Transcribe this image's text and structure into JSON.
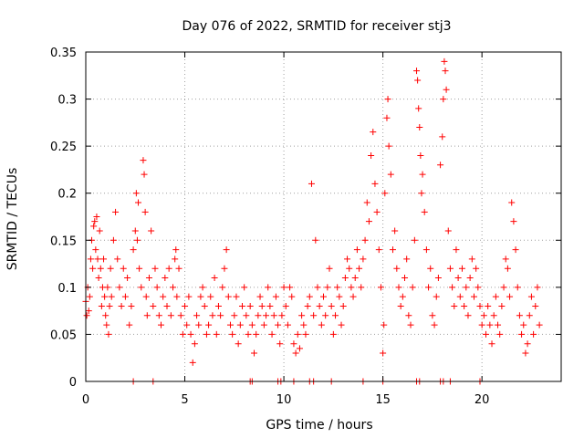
{
  "chart_data": {
    "type": "scatter",
    "title": "Day 076 of 2022, SRMTID for receiver stj3",
    "xlabel": "GPS time / hours",
    "ylabel": "SRMTID / TECUs",
    "xlim": [
      0,
      24
    ],
    "ylim": [
      0,
      0.35
    ],
    "grid": true,
    "x_ticks": [
      0,
      5,
      10,
      15,
      20
    ],
    "x_tick_labels": [
      "0",
      "5",
      "10",
      "15",
      "20"
    ],
    "y_ticks": [
      0,
      0.05,
      0.1,
      0.15,
      0.2,
      0.25,
      0.3,
      0.35
    ],
    "y_tick_labels": [
      "0",
      "0.05",
      "0.1",
      "0.15",
      "0.2",
      "0.25",
      "0.3",
      "0.35"
    ],
    "marker": "+",
    "colors": {
      "marker": "#ff0000",
      "grid": "#a0a0a0",
      "axis": "#000000"
    },
    "series": [
      {
        "name": "SRMTID",
        "points": [
          [
            0.0,
            0.085
          ],
          [
            0.05,
            0.07
          ],
          [
            0.1,
            0.1
          ],
          [
            0.15,
            0.075
          ],
          [
            0.2,
            0.09
          ],
          [
            0.25,
            0.13
          ],
          [
            0.3,
            0.15
          ],
          [
            0.35,
            0.12
          ],
          [
            0.4,
            0.165
          ],
          [
            0.45,
            0.17
          ],
          [
            0.5,
            0.14
          ],
          [
            0.55,
            0.175
          ],
          [
            0.6,
            0.13
          ],
          [
            0.65,
            0.11
          ],
          [
            0.7,
            0.16
          ],
          [
            0.75,
            0.12
          ],
          [
            0.8,
            0.08
          ],
          [
            0.85,
            0.1
          ],
          [
            0.9,
            0.13
          ],
          [
            0.95,
            0.09
          ],
          [
            1.0,
            0.07
          ],
          [
            1.05,
            0.06
          ],
          [
            1.1,
            0.1
          ],
          [
            1.15,
            0.05
          ],
          [
            1.2,
            0.08
          ],
          [
            1.25,
            0.12
          ],
          [
            1.3,
            0.09
          ],
          [
            1.4,
            0.15
          ],
          [
            1.5,
            0.18
          ],
          [
            1.6,
            0.13
          ],
          [
            1.7,
            0.1
          ],
          [
            1.8,
            0.08
          ],
          [
            1.9,
            0.12
          ],
          [
            2.0,
            0.09
          ],
          [
            2.1,
            0.11
          ],
          [
            2.2,
            0.06
          ],
          [
            2.3,
            0.08
          ],
          [
            2.4,
            0.14
          ],
          [
            2.5,
            0.16
          ],
          [
            2.55,
            0.2
          ],
          [
            2.6,
            0.15
          ],
          [
            2.65,
            0.19
          ],
          [
            2.7,
            0.12
          ],
          [
            2.8,
            0.1
          ],
          [
            2.9,
            0.235
          ],
          [
            2.95,
            0.22
          ],
          [
            3.0,
            0.18
          ],
          [
            3.05,
            0.09
          ],
          [
            3.1,
            0.07
          ],
          [
            3.2,
            0.11
          ],
          [
            3.3,
            0.16
          ],
          [
            3.4,
            0.08
          ],
          [
            3.5,
            0.12
          ],
          [
            3.6,
            0.1
          ],
          [
            3.7,
            0.07
          ],
          [
            3.8,
            0.06
          ],
          [
            3.9,
            0.09
          ],
          [
            4.0,
            0.11
          ],
          [
            4.1,
            0.08
          ],
          [
            4.2,
            0.12
          ],
          [
            4.3,
            0.07
          ],
          [
            4.4,
            0.1
          ],
          [
            4.5,
            0.13
          ],
          [
            4.55,
            0.14
          ],
          [
            4.6,
            0.09
          ],
          [
            4.7,
            0.12
          ],
          [
            4.8,
            0.07
          ],
          [
            4.9,
            0.05
          ],
          [
            5.0,
            0.08
          ],
          [
            5.1,
            0.06
          ],
          [
            5.2,
            0.09
          ],
          [
            5.3,
            0.05
          ],
          [
            5.4,
            0.02
          ],
          [
            5.5,
            0.04
          ],
          [
            5.6,
            0.07
          ],
          [
            5.7,
            0.06
          ],
          [
            5.8,
            0.09
          ],
          [
            5.9,
            0.1
          ],
          [
            6.0,
            0.08
          ],
          [
            6.1,
            0.05
          ],
          [
            6.2,
            0.06
          ],
          [
            6.3,
            0.09
          ],
          [
            6.4,
            0.07
          ],
          [
            6.5,
            0.11
          ],
          [
            6.6,
            0.05
          ],
          [
            6.7,
            0.08
          ],
          [
            6.8,
            0.07
          ],
          [
            6.9,
            0.1
          ],
          [
            7.0,
            0.12
          ],
          [
            7.1,
            0.14
          ],
          [
            7.2,
            0.09
          ],
          [
            7.3,
            0.06
          ],
          [
            7.4,
            0.05
          ],
          [
            7.5,
            0.07
          ],
          [
            7.6,
            0.09
          ],
          [
            7.7,
            0.04
          ],
          [
            7.8,
            0.06
          ],
          [
            7.9,
            0.08
          ],
          [
            8.0,
            0.1
          ],
          [
            8.1,
            0.07
          ],
          [
            8.2,
            0.05
          ],
          [
            8.3,
            0.08
          ],
          [
            8.4,
            0.06
          ],
          [
            8.5,
            0.03
          ],
          [
            8.6,
            0.05
          ],
          [
            8.7,
            0.07
          ],
          [
            8.8,
            0.09
          ],
          [
            8.9,
            0.08
          ],
          [
            9.0,
            0.06
          ],
          [
            9.1,
            0.07
          ],
          [
            9.2,
            0.1
          ],
          [
            9.3,
            0.08
          ],
          [
            9.4,
            0.05
          ],
          [
            9.5,
            0.07
          ],
          [
            9.6,
            0.09
          ],
          [
            9.7,
            0.06
          ],
          [
            9.8,
            0.04
          ],
          [
            9.9,
            0.07
          ],
          [
            10.0,
            0.1
          ],
          [
            10.1,
            0.08
          ],
          [
            10.2,
            0.06
          ],
          [
            10.3,
            0.1
          ],
          [
            10.4,
            0.09
          ],
          [
            10.5,
            0.04
          ],
          [
            10.6,
            0.03
          ],
          [
            10.7,
            0.05
          ],
          [
            10.8,
            0.035
          ],
          [
            10.9,
            0.07
          ],
          [
            11.0,
            0.06
          ],
          [
            11.1,
            0.05
          ],
          [
            11.2,
            0.08
          ],
          [
            11.3,
            0.09
          ],
          [
            11.4,
            0.21
          ],
          [
            11.5,
            0.07
          ],
          [
            11.6,
            0.15
          ],
          [
            11.7,
            0.1
          ],
          [
            11.8,
            0.08
          ],
          [
            11.9,
            0.06
          ],
          [
            12.0,
            0.09
          ],
          [
            12.1,
            0.07
          ],
          [
            12.2,
            0.1
          ],
          [
            12.3,
            0.12
          ],
          [
            12.4,
            0.08
          ],
          [
            12.5,
            0.05
          ],
          [
            12.6,
            0.07
          ],
          [
            12.7,
            0.1
          ],
          [
            12.8,
            0.09
          ],
          [
            12.9,
            0.06
          ],
          [
            13.0,
            0.08
          ],
          [
            13.1,
            0.11
          ],
          [
            13.2,
            0.13
          ],
          [
            13.3,
            0.12
          ],
          [
            13.4,
            0.1
          ],
          [
            13.5,
            0.09
          ],
          [
            13.6,
            0.11
          ],
          [
            13.7,
            0.14
          ],
          [
            13.8,
            0.12
          ],
          [
            13.9,
            0.1
          ],
          [
            14.0,
            0.13
          ],
          [
            14.1,
            0.15
          ],
          [
            14.2,
            0.19
          ],
          [
            14.3,
            0.17
          ],
          [
            14.4,
            0.24
          ],
          [
            14.5,
            0.265
          ],
          [
            14.6,
            0.21
          ],
          [
            14.7,
            0.18
          ],
          [
            14.8,
            0.14
          ],
          [
            14.9,
            0.1
          ],
          [
            15.0,
            0.03
          ],
          [
            15.05,
            0.06
          ],
          [
            15.1,
            0.2
          ],
          [
            15.2,
            0.28
          ],
          [
            15.25,
            0.3
          ],
          [
            15.3,
            0.25
          ],
          [
            15.4,
            0.22
          ],
          [
            15.5,
            0.14
          ],
          [
            15.6,
            0.16
          ],
          [
            15.7,
            0.12
          ],
          [
            15.8,
            0.1
          ],
          [
            15.9,
            0.08
          ],
          [
            16.0,
            0.09
          ],
          [
            16.1,
            0.11
          ],
          [
            16.2,
            0.13
          ],
          [
            16.3,
            0.07
          ],
          [
            16.4,
            0.06
          ],
          [
            16.5,
            0.1
          ],
          [
            16.6,
            0.15
          ],
          [
            16.7,
            0.33
          ],
          [
            16.75,
            0.32
          ],
          [
            16.8,
            0.29
          ],
          [
            16.85,
            0.27
          ],
          [
            16.9,
            0.24
          ],
          [
            16.95,
            0.2
          ],
          [
            17.0,
            0.22
          ],
          [
            17.1,
            0.18
          ],
          [
            17.2,
            0.14
          ],
          [
            17.3,
            0.1
          ],
          [
            17.4,
            0.12
          ],
          [
            17.5,
            0.07
          ],
          [
            17.6,
            0.06
          ],
          [
            17.7,
            0.09
          ],
          [
            17.8,
            0.11
          ],
          [
            17.9,
            0.23
          ],
          [
            18.0,
            0.26
          ],
          [
            18.05,
            0.3
          ],
          [
            18.1,
            0.34
          ],
          [
            18.15,
            0.33
          ],
          [
            18.2,
            0.31
          ],
          [
            18.3,
            0.16
          ],
          [
            18.4,
            0.12
          ],
          [
            18.5,
            0.1
          ],
          [
            18.6,
            0.08
          ],
          [
            18.7,
            0.14
          ],
          [
            18.8,
            0.11
          ],
          [
            18.9,
            0.09
          ],
          [
            19.0,
            0.12
          ],
          [
            19.1,
            0.08
          ],
          [
            19.2,
            0.1
          ],
          [
            19.3,
            0.07
          ],
          [
            19.4,
            0.11
          ],
          [
            19.5,
            0.13
          ],
          [
            19.6,
            0.09
          ],
          [
            19.7,
            0.12
          ],
          [
            19.8,
            0.1
          ],
          [
            19.9,
            0.08
          ],
          [
            20.0,
            0.06
          ],
          [
            20.1,
            0.07
          ],
          [
            20.2,
            0.05
          ],
          [
            20.3,
            0.08
          ],
          [
            20.4,
            0.06
          ],
          [
            20.5,
            0.04
          ],
          [
            20.6,
            0.07
          ],
          [
            20.7,
            0.09
          ],
          [
            20.8,
            0.06
          ],
          [
            20.9,
            0.05
          ],
          [
            21.0,
            0.08
          ],
          [
            21.1,
            0.1
          ],
          [
            21.2,
            0.13
          ],
          [
            21.3,
            0.12
          ],
          [
            21.4,
            0.09
          ],
          [
            21.5,
            0.19
          ],
          [
            21.6,
            0.17
          ],
          [
            21.7,
            0.14
          ],
          [
            21.8,
            0.1
          ],
          [
            21.9,
            0.07
          ],
          [
            22.0,
            0.05
          ],
          [
            22.1,
            0.06
          ],
          [
            22.2,
            0.03
          ],
          [
            22.3,
            0.04
          ],
          [
            22.4,
            0.07
          ],
          [
            22.5,
            0.09
          ],
          [
            22.6,
            0.05
          ],
          [
            22.7,
            0.08
          ],
          [
            22.8,
            0.1
          ],
          [
            22.9,
            0.06
          ]
        ]
      }
    ],
    "zero_points_x": [
      2.4,
      3.4,
      8.3,
      8.4,
      9.7,
      9.85,
      10.5,
      11.3,
      11.5,
      12.4,
      14.0,
      15.0,
      16.7,
      16.85,
      17.9,
      18.05,
      18.4,
      19.9
    ]
  }
}
